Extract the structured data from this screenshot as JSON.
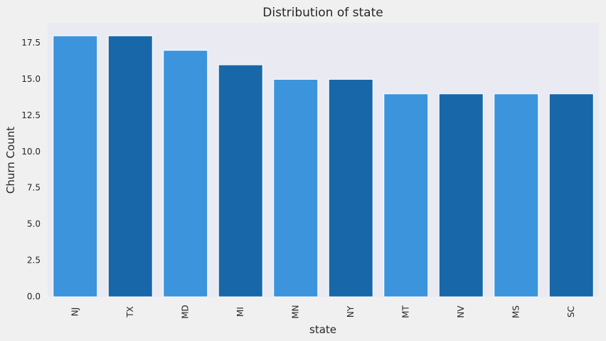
{
  "chart_data": {
    "type": "bar",
    "title": "Distribution of state",
    "xlabel": "state",
    "ylabel": "Churn Count",
    "categories": [
      "NJ",
      "TX",
      "MD",
      "MI",
      "MN",
      "NY",
      "MT",
      "NV",
      "MS",
      "SC"
    ],
    "values": [
      18,
      18,
      17,
      16,
      15,
      15,
      14,
      14,
      14,
      14
    ],
    "ylim": [
      0,
      18.9
    ],
    "yticks": [
      "0.0",
      "2.5",
      "5.0",
      "7.5",
      "10.0",
      "12.5",
      "15.0",
      "17.5"
    ],
    "ytick_values": [
      0,
      2.5,
      5,
      7.5,
      10,
      12.5,
      15,
      17.5
    ],
    "grid": false,
    "colors": {
      "bar_light": "#3b94dc",
      "bar_dark": "#1868a9",
      "plot_background": "#eaeaf2",
      "figure_background": "#f0f0f0"
    }
  }
}
